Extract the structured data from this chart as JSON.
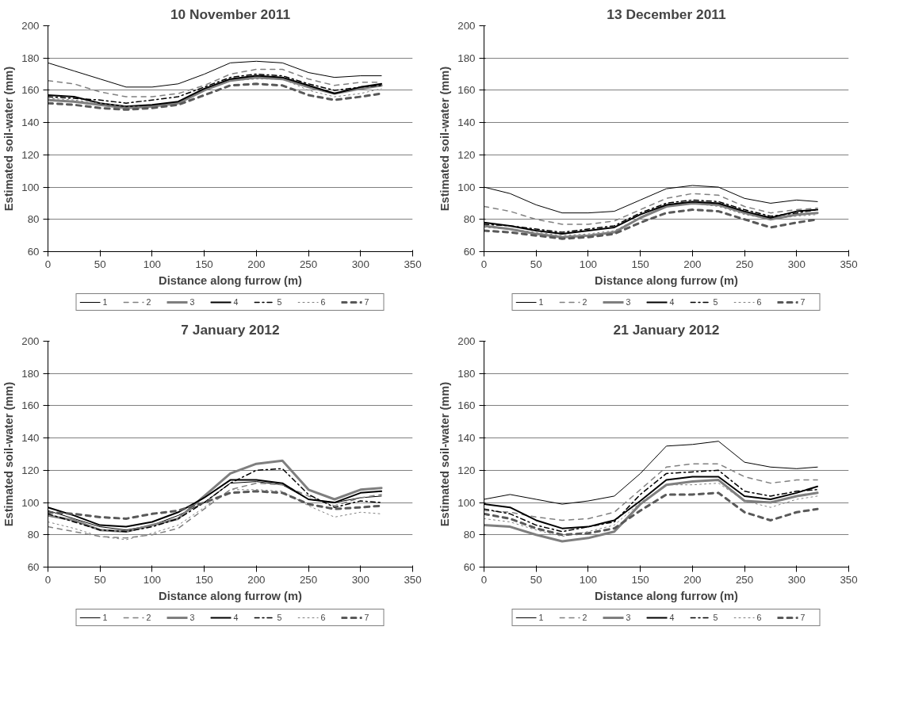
{
  "chart_data": [
    {
      "type": "line",
      "title": "10 November 2011",
      "xlabel": "Distance along furrow (m)",
      "ylabel": "Estimated soil-water (mm)",
      "x": [
        0,
        25,
        50,
        75,
        100,
        125,
        150,
        175,
        200,
        225,
        250,
        275,
        300,
        320
      ],
      "xlim": [
        0,
        350
      ],
      "xticks": [
        0,
        50,
        100,
        150,
        200,
        250,
        300,
        350
      ],
      "ylim": [
        60,
        200
      ],
      "yticks": [
        60,
        80,
        100,
        120,
        140,
        160,
        180,
        200
      ],
      "grid": "y",
      "legend": "bottom",
      "series": [
        {
          "name": "1",
          "color": "#000000",
          "line_style": "solid",
          "values": [
            177,
            172,
            167,
            162,
            162,
            164,
            170,
            177,
            178,
            177,
            171,
            168,
            169,
            169
          ]
        },
        {
          "name": "2",
          "color": "#808080",
          "line_style": "dashed",
          "values": [
            166,
            164,
            159,
            156,
            156,
            158,
            163,
            170,
            173,
            173,
            167,
            163,
            165,
            165
          ]
        },
        {
          "name": "3",
          "color": "#7f7f7f",
          "line_style": "solid",
          "values": [
            154,
            153,
            151,
            149,
            150,
            152,
            160,
            166,
            168,
            167,
            162,
            158,
            161,
            163
          ]
        },
        {
          "name": "4",
          "color": "#000000",
          "line_style": "solid",
          "values": [
            157,
            156,
            152,
            150,
            151,
            153,
            161,
            167,
            169,
            168,
            163,
            158,
            162,
            164
          ]
        },
        {
          "name": "5",
          "color": "#000000",
          "line_style": "dashdot",
          "values": [
            156,
            155,
            154,
            152,
            154,
            156,
            162,
            168,
            170,
            169,
            164,
            160,
            162,
            163
          ]
        },
        {
          "name": "6",
          "color": "#808080",
          "line_style": "dotted",
          "values": [
            155,
            154,
            152,
            150,
            150,
            152,
            160,
            166,
            167,
            167,
            160,
            156,
            158,
            161
          ]
        },
        {
          "name": "7",
          "color": "#595959",
          "line_style": "dashed",
          "values": [
            152,
            151,
            149,
            148,
            149,
            151,
            157,
            163,
            164,
            163,
            157,
            154,
            156,
            158
          ]
        }
      ]
    },
    {
      "type": "line",
      "title": "13 December 2011",
      "xlabel": "Distance along furrow (m)",
      "ylabel": "Estimated soil-water (mm)",
      "x": [
        0,
        25,
        50,
        75,
        100,
        125,
        150,
        175,
        200,
        225,
        250,
        275,
        300,
        320
      ],
      "xlim": [
        0,
        350
      ],
      "xticks": [
        0,
        50,
        100,
        150,
        200,
        250,
        300,
        350
      ],
      "ylim": [
        60,
        200
      ],
      "yticks": [
        60,
        80,
        100,
        120,
        140,
        160,
        180,
        200
      ],
      "grid": "y",
      "legend": "bottom",
      "series": [
        {
          "name": "1",
          "color": "#000000",
          "line_style": "solid",
          "values": [
            100,
            96,
            89,
            84,
            84,
            85,
            92,
            99,
            101,
            100,
            93,
            90,
            92,
            91
          ]
        },
        {
          "name": "2",
          "color": "#808080",
          "line_style": "dashed",
          "values": [
            88,
            85,
            80,
            77,
            77,
            79,
            86,
            93,
            96,
            95,
            88,
            84,
            86,
            87
          ]
        },
        {
          "name": "3",
          "color": "#7f7f7f",
          "line_style": "solid",
          "values": [
            76,
            74,
            71,
            69,
            70,
            72,
            81,
            88,
            90,
            89,
            84,
            80,
            83,
            84
          ]
        },
        {
          "name": "4",
          "color": "#000000",
          "line_style": "solid",
          "values": [
            78,
            76,
            73,
            71,
            73,
            75,
            83,
            89,
            91,
            90,
            85,
            81,
            85,
            86
          ]
        },
        {
          "name": "5",
          "color": "#000000",
          "line_style": "dashdot",
          "values": [
            77,
            76,
            74,
            72,
            74,
            76,
            84,
            90,
            92,
            91,
            86,
            82,
            84,
            86
          ]
        },
        {
          "name": "6",
          "color": "#808080",
          "line_style": "dotted",
          "values": [
            75,
            74,
            72,
            70,
            71,
            73,
            81,
            88,
            90,
            88,
            83,
            80,
            82,
            83
          ]
        },
        {
          "name": "7",
          "color": "#595959",
          "line_style": "dashed",
          "values": [
            73,
            72,
            70,
            68,
            69,
            71,
            78,
            84,
            86,
            85,
            80,
            75,
            78,
            80
          ]
        }
      ]
    },
    {
      "type": "line",
      "title": "7 January 2012",
      "xlabel": "Distance along furrow (m)",
      "ylabel": "Estimated soil-water (mm)",
      "x": [
        0,
        25,
        50,
        75,
        100,
        125,
        150,
        175,
        200,
        225,
        250,
        275,
        300,
        320
      ],
      "xlim": [
        0,
        350
      ],
      "xticks": [
        0,
        50,
        100,
        150,
        200,
        250,
        300,
        350
      ],
      "ylim": [
        60,
        200
      ],
      "yticks": [
        60,
        80,
        100,
        120,
        140,
        160,
        180,
        200
      ],
      "grid": "y",
      "legend": "bottom",
      "series": [
        {
          "name": "1",
          "color": "#000000",
          "line_style": "solid",
          "values": [
            95,
            90,
            85,
            83,
            86,
            92,
            100,
            112,
            113,
            111,
            102,
            100,
            103,
            104
          ]
        },
        {
          "name": "2",
          "color": "#808080",
          "line_style": "dashed",
          "values": [
            85,
            82,
            79,
            78,
            80,
            84,
            96,
            108,
            112,
            111,
            104,
            98,
            103,
            105
          ]
        },
        {
          "name": "3",
          "color": "#7f7f7f",
          "line_style": "solid",
          "values": [
            92,
            89,
            83,
            82,
            86,
            90,
            104,
            118,
            124,
            126,
            108,
            102,
            108,
            109
          ]
        },
        {
          "name": "4",
          "color": "#000000",
          "line_style": "solid",
          "values": [
            97,
            92,
            86,
            85,
            88,
            94,
            103,
            114,
            114,
            112,
            102,
            100,
            106,
            107
          ]
        },
        {
          "name": "5",
          "color": "#000000",
          "line_style": "dashdot",
          "values": [
            93,
            88,
            83,
            82,
            85,
            90,
            100,
            112,
            120,
            121,
            105,
            97,
            101,
            100
          ]
        },
        {
          "name": "6",
          "color": "#808080",
          "line_style": "dotted",
          "values": [
            88,
            84,
            79,
            77,
            81,
            86,
            97,
            108,
            108,
            107,
            98,
            91,
            94,
            93
          ]
        },
        {
          "name": "7",
          "color": "#595959",
          "line_style": "dashed",
          "values": [
            94,
            93,
            91,
            90,
            93,
            95,
            100,
            106,
            107,
            106,
            99,
            96,
            97,
            98
          ]
        }
      ]
    },
    {
      "type": "line",
      "title": "21 January 2012",
      "xlabel": "Distance along furrow (m)",
      "ylabel": "Estimated soil-water (mm)",
      "x": [
        0,
        25,
        50,
        75,
        100,
        125,
        150,
        175,
        200,
        225,
        250,
        275,
        300,
        320
      ],
      "xlim": [
        0,
        350
      ],
      "xticks": [
        0,
        50,
        100,
        150,
        200,
        250,
        300,
        350
      ],
      "ylim": [
        60,
        200
      ],
      "yticks": [
        60,
        80,
        100,
        120,
        140,
        160,
        180,
        200
      ],
      "grid": "y",
      "legend": "bottom",
      "series": [
        {
          "name": "1",
          "color": "#000000",
          "line_style": "solid",
          "values": [
            102,
            105,
            102,
            99,
            101,
            104,
            118,
            135,
            136,
            138,
            125,
            122,
            121,
            122
          ]
        },
        {
          "name": "2",
          "color": "#808080",
          "line_style": "dashed",
          "values": [
            95,
            94,
            91,
            89,
            90,
            94,
            108,
            122,
            124,
            124,
            116,
            112,
            114,
            114
          ]
        },
        {
          "name": "3",
          "color": "#7f7f7f",
          "line_style": "solid",
          "values": [
            86,
            85,
            80,
            76,
            78,
            82,
            99,
            111,
            113,
            114,
            101,
            100,
            104,
            106
          ]
        },
        {
          "name": "4",
          "color": "#000000",
          "line_style": "solid",
          "values": [
            99,
            97,
            89,
            84,
            85,
            89,
            101,
            114,
            116,
            116,
            104,
            102,
            106,
            110
          ]
        },
        {
          "name": "5",
          "color": "#000000",
          "line_style": "dashdot",
          "values": [
            96,
            93,
            86,
            82,
            85,
            88,
            105,
            118,
            119,
            120,
            107,
            104,
            107,
            108
          ]
        },
        {
          "name": "6",
          "color": "#808080",
          "line_style": "dotted",
          "values": [
            90,
            88,
            83,
            79,
            82,
            86,
            100,
            111,
            111,
            112,
            101,
            97,
            102,
            104
          ]
        },
        {
          "name": "7",
          "color": "#595959",
          "line_style": "dashed",
          "values": [
            93,
            90,
            84,
            80,
            81,
            84,
            95,
            105,
            105,
            106,
            94,
            89,
            94,
            96
          ]
        }
      ]
    }
  ]
}
